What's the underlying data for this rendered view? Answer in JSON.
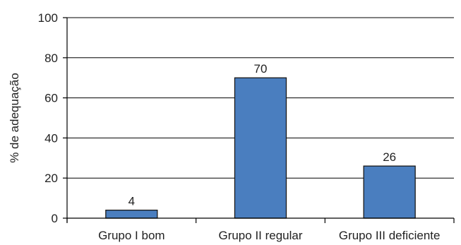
{
  "chart_data": {
    "type": "bar",
    "categories": [
      "Grupo I bom",
      "Grupo II regular",
      "Grupo III deficiente"
    ],
    "values": [
      4,
      70,
      26
    ],
    "data_labels": [
      "4",
      "70",
      "26"
    ],
    "title": "",
    "xlabel": "",
    "ylabel": "% de adequação",
    "ylim": [
      0,
      100
    ],
    "yticks": [
      0,
      20,
      40,
      60,
      80,
      100
    ],
    "grid": true,
    "bar_color": "#4a7ebf",
    "bar_edge_color": "#1a1a1a",
    "gridline_color": "#000000",
    "text_color": "#222222"
  }
}
